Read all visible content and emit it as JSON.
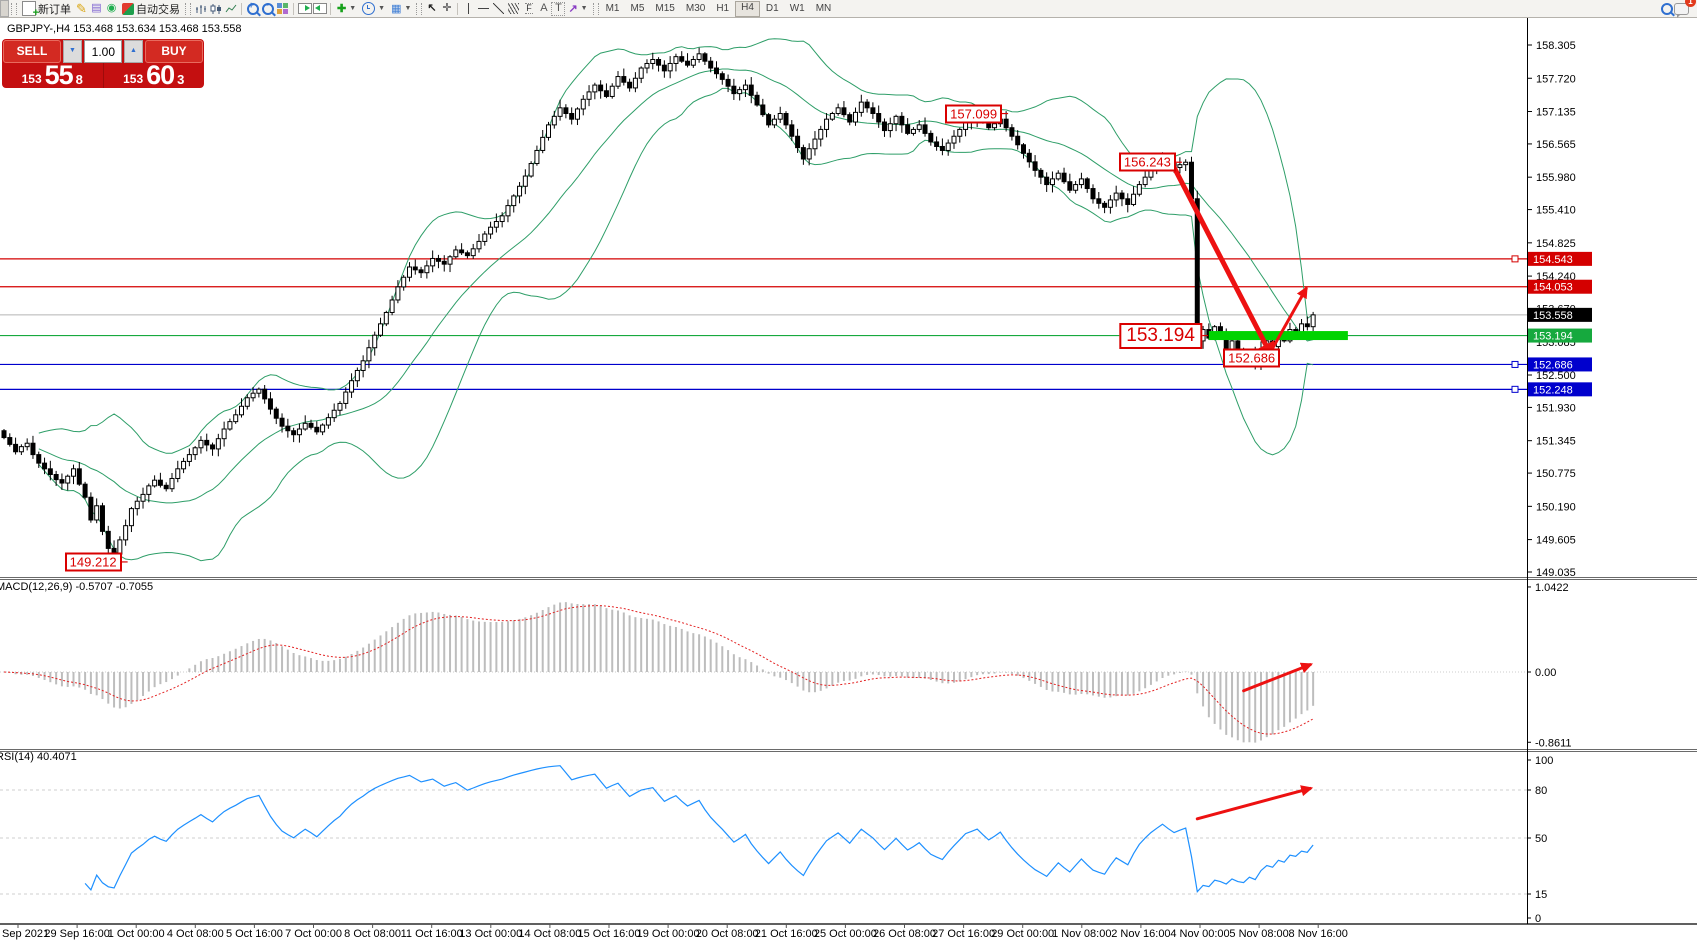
{
  "toolbar": {
    "new_order_label": "新订单",
    "autotrade_label": "自动交易",
    "timeframes": [
      "M1",
      "M5",
      "M15",
      "M30",
      "H1",
      "H4",
      "D1",
      "W1",
      "MN"
    ],
    "active_timeframe": "H4",
    "notification_count": "1"
  },
  "chart": {
    "title": "GBPJPY-,H4 153.468 153.634 153.468 153.558"
  },
  "trade_panel": {
    "sell_label": "SELL",
    "buy_label": "BUY",
    "volume": "1.00",
    "sell": {
      "prefix": "153",
      "big": "55",
      "sup": "8"
    },
    "buy": {
      "prefix": "153",
      "big": "60",
      "sup": "3"
    }
  },
  "chart_data": {
    "type": "candlestick",
    "symbol": "GBPJPY-",
    "timeframe": "H4",
    "quote": {
      "open": "153.468",
      "high": "153.634",
      "low": "153.468",
      "close": "153.558"
    },
    "ylim": [
      148.93,
      158.8
    ],
    "closes": [
      151.4,
      151.28,
      151.15,
      151.24,
      151.3,
      151.1,
      150.95,
      150.85,
      150.75,
      150.66,
      150.6,
      150.72,
      150.85,
      150.58,
      150.35,
      149.95,
      150.2,
      149.75,
      149.45,
      149.35,
      149.6,
      149.85,
      150.15,
      150.28,
      150.4,
      150.55,
      150.65,
      150.56,
      150.5,
      150.68,
      150.85,
      150.98,
      151.1,
      151.22,
      151.35,
      151.27,
      151.2,
      151.38,
      151.55,
      151.68,
      151.8,
      151.95,
      152.1,
      152.18,
      152.25,
      152.08,
      151.9,
      151.74,
      151.6,
      151.52,
      151.45,
      151.55,
      151.65,
      151.58,
      151.5,
      151.62,
      151.75,
      151.88,
      152.0,
      152.2,
      152.4,
      152.58,
      152.75,
      152.98,
      153.2,
      153.4,
      153.6,
      153.82,
      154.05,
      154.22,
      154.4,
      154.35,
      154.3,
      154.42,
      154.55,
      154.5,
      154.45,
      154.58,
      154.7,
      154.65,
      154.6,
      154.72,
      154.85,
      154.98,
      155.1,
      155.2,
      155.3,
      155.48,
      155.65,
      155.82,
      156.0,
      156.22,
      156.45,
      156.68,
      156.9,
      157.05,
      157.2,
      157.1,
      157.0,
      157.18,
      157.35,
      157.48,
      157.6,
      157.5,
      157.4,
      157.58,
      157.75,
      157.65,
      157.55,
      157.72,
      157.9,
      157.98,
      158.05,
      157.95,
      157.85,
      157.98,
      158.1,
      158.02,
      157.95,
      158.05,
      158.15,
      158.02,
      157.9,
      157.8,
      157.7,
      157.58,
      157.45,
      157.52,
      157.6,
      157.42,
      157.25,
      157.08,
      156.9,
      157.0,
      157.1,
      156.9,
      156.7,
      156.5,
      156.3,
      156.48,
      156.65,
      156.82,
      157.0,
      157.1,
      157.2,
      157.08,
      156.95,
      157.12,
      157.3,
      157.2,
      157.1,
      156.95,
      156.8,
      156.92,
      157.05,
      156.9,
      156.75,
      156.82,
      156.9,
      156.75,
      156.6,
      156.52,
      156.45,
      156.58,
      156.7,
      156.82,
      156.95,
      157.0,
      157.05,
      156.95,
      156.85,
      156.92,
      157.0,
      156.85,
      156.7,
      156.55,
      156.4,
      156.25,
      156.1,
      155.98,
      155.85,
      155.95,
      156.05,
      155.9,
      155.75,
      155.85,
      155.95,
      155.78,
      155.6,
      155.52,
      155.45,
      155.58,
      155.7,
      155.6,
      155.5,
      155.68,
      155.85,
      155.98,
      156.1,
      156.2,
      156.3,
      156.22,
      156.15,
      156.2,
      156.243,
      155.6,
      153.1,
      153.3,
      153.15,
      153.35,
      153.2,
      152.95,
      153.1,
      152.85,
      152.75,
      152.9,
      152.7,
      152.95,
      153.1,
      153.0,
      153.2,
      153.1,
      153.3,
      153.25,
      153.4,
      153.35,
      153.558
    ],
    "low_overrides": {
      "19": 149.212
    },
    "indicators": {
      "bollinger": {
        "period": 20,
        "deviation": 2,
        "color": "#2e9e68"
      },
      "macd": {
        "label": "MACD(12,26,9) -0.5707 -0.7055",
        "fast": 12,
        "slow": 26,
        "signal": 9,
        "main_value": -0.5707,
        "signal_value": -0.7055,
        "axis_labels": [
          {
            "text": "1.0422",
            "value": 1.0422
          },
          {
            "text": "0.00",
            "value": 0
          },
          {
            "text": "-0.8611",
            "value": -0.8611
          }
        ]
      },
      "rsi": {
        "label": "RSI(14) 40.4071",
        "period": 14,
        "value": 40.4071,
        "axis_labels": [
          {
            "text": "100",
            "value": 100
          },
          {
            "text": "80",
            "value": 80
          },
          {
            "text": "50",
            "value": 50
          },
          {
            "text": "15",
            "value": 15
          },
          {
            "text": "0",
            "value": 0
          }
        ],
        "dashed_levels": [
          80,
          50,
          15
        ]
      }
    },
    "y_axis_ticks": [
      "158.305",
      "157.720",
      "157.135",
      "156.565",
      "155.980",
      "155.410",
      "154.825",
      "154.240",
      "153.670",
      "153.085",
      "152.500",
      "151.930",
      "151.345",
      "150.775",
      "150.190",
      "149.605",
      "149.035"
    ],
    "x_axis_labels": [
      "Sep 2021",
      "29 Sep 16:00",
      "1 Oct 00:00",
      "4 Oct 08:00",
      "5 Oct 16:00",
      "7 Oct 00:00",
      "8 Oct 08:00",
      "11 Oct 16:00",
      "13 Oct 00:00",
      "14 Oct 08:00",
      "15 Oct 16:00",
      "19 Oct 00:00",
      "20 Oct 08:00",
      "21 Oct 16:00",
      "25 Oct 00:00",
      "26 Oct 08:00",
      "27 Oct 16:00",
      "29 Oct 00:00",
      "1 Nov 08:00",
      "2 Nov 16:00",
      "4 Nov 00:00",
      "5 Nov 08:00",
      "8 Nov 16:00"
    ],
    "levels": [
      {
        "value": 154.543,
        "text": "154.543",
        "color": "#d40000",
        "badge": "#d40000",
        "marker": true
      },
      {
        "value": 154.053,
        "text": "154.053",
        "color": "#d40000",
        "badge": "#d40000",
        "marker": false
      },
      {
        "value": 153.194,
        "text": "153.194",
        "color": "#16a93e",
        "badge": "#16a93e",
        "marker": false
      },
      {
        "value": 152.686,
        "text": "152.686",
        "color": "#0000cd",
        "badge": "#0000cd",
        "marker": true
      },
      {
        "value": 152.248,
        "text": "152.248",
        "color": "#0000cd",
        "badge": "#0000cd",
        "marker": true
      }
    ],
    "bid": {
      "value": 153.558,
      "text": "153.558",
      "line_color": "#b4b4b4",
      "badge": "#000000"
    },
    "annotations": {
      "price_labels": [
        {
          "text": "157.099",
          "price": 157.099,
          "bar": 173,
          "large": false,
          "connector": true
        },
        {
          "text": "156.243",
          "price": 156.243,
          "bar": 203,
          "large": false,
          "connector": true
        },
        {
          "text": "153.194",
          "price": 153.194,
          "bar": 207.5,
          "large": true,
          "connector": true
        },
        {
          "text": "152.686",
          "price": 152.686,
          "pos_price": 152.8,
          "bar": 221,
          "large": false,
          "connector": false
        },
        {
          "text": "149.212",
          "price": 149.212,
          "bar": 21,
          "large": false,
          "connector": true
        }
      ],
      "arrows": [
        {
          "pane": "main",
          "from": [
            202,
            156.15
          ],
          "to": [
            219,
            152.8
          ],
          "width": 5
        },
        {
          "pane": "main",
          "from": [
            217.5,
            152.7
          ],
          "to": [
            224.8,
            154.02
          ],
          "width": 3
        },
        {
          "pane": "macd",
          "from": [
            214,
            -0.23
          ],
          "to": [
            225.5,
            0.09
          ],
          "width": 3
        },
        {
          "pane": "rsi",
          "from": [
            206,
            62
          ],
          "to": [
            225.5,
            81
          ],
          "width": 3
        }
      ],
      "green_bar": {
        "price": 153.194,
        "bar_start": 208,
        "bar_end": 232,
        "height": 9,
        "color": "#00d300"
      }
    }
  }
}
